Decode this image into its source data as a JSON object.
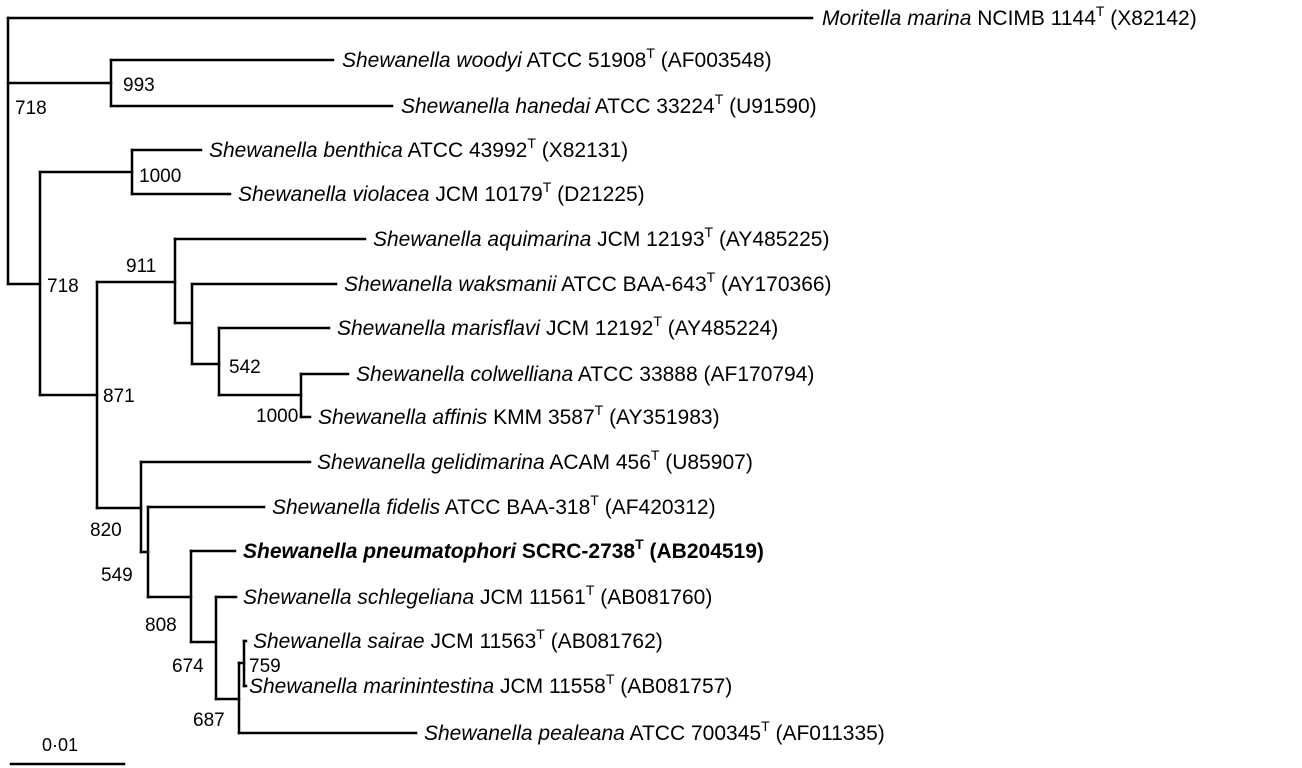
{
  "tree": {
    "leaves": [
      {
        "id": "moritella",
        "genus": "Moritella marina",
        "strain": "NCIMB 1144",
        "type_strain": true,
        "accession": "(X82142)",
        "bold": false
      },
      {
        "id": "woodyi",
        "genus": "Shewanella woodyi",
        "strain": "ATCC 51908",
        "type_strain": true,
        "accession": "(AF003548)",
        "bold": false
      },
      {
        "id": "hanedai",
        "genus": "Shewanella hanedai",
        "strain": "ATCC 33224",
        "type_strain": true,
        "accession": "(U91590)",
        "bold": false
      },
      {
        "id": "benthica",
        "genus": "Shewanella benthica",
        "strain": "ATCC 43992",
        "type_strain": true,
        "accession": "(X82131)",
        "bold": false
      },
      {
        "id": "violacea",
        "genus": "Shewanella violacea",
        "strain": "JCM 10179",
        "type_strain": true,
        "accession": "(D21225)",
        "bold": false
      },
      {
        "id": "aquimarina",
        "genus": "Shewanella aquimarina",
        "strain": "JCM 12193",
        "type_strain": true,
        "accession": "(AY485225)",
        "bold": false
      },
      {
        "id": "waksmanii",
        "genus": "Shewanella waksmanii",
        "strain": "ATCC BAA-643",
        "type_strain": true,
        "accession": "(AY170366)",
        "bold": false
      },
      {
        "id": "marisflavi",
        "genus": "Shewanella marisflavi",
        "strain": "JCM 12192",
        "type_strain": true,
        "accession": "(AY485224)",
        "bold": false
      },
      {
        "id": "colwelliana",
        "genus": "Shewanella colwelliana",
        "strain": "ATCC 33888",
        "type_strain": false,
        "accession": "(AF170794)",
        "bold": false
      },
      {
        "id": "affinis",
        "genus": "Shewanella affinis",
        "strain": "KMM 3587",
        "type_strain": true,
        "accession": "(AY351983)",
        "bold": false
      },
      {
        "id": "gelidimarina",
        "genus": "Shewanella gelidimarina",
        "strain": "ACAM 456",
        "type_strain": true,
        "accession": "(U85907)",
        "bold": false
      },
      {
        "id": "fidelis",
        "genus": "Shewanella fidelis",
        "strain": "ATCC BAA-318",
        "type_strain": true,
        "accession": "(AF420312)",
        "bold": false
      },
      {
        "id": "pneumatophori",
        "genus": "Shewanella pneumatophori",
        "strain": "SCRC-2738",
        "type_strain": true,
        "accession": "(AB204519)",
        "bold": true
      },
      {
        "id": "schlegeliana",
        "genus": "Shewanella schlegeliana",
        "strain": "JCM 11561",
        "type_strain": true,
        "accession": "(AB081760)",
        "bold": false
      },
      {
        "id": "sairae",
        "genus": "Shewanella sairae",
        "strain": "JCM 11563",
        "type_strain": true,
        "accession": "(AB081762)",
        "bold": false
      },
      {
        "id": "marinintestina",
        "genus": "Shewanella marinintestina",
        "strain": "JCM 11558",
        "type_strain": true,
        "accession": "(AB081757)",
        "bold": false
      },
      {
        "id": "pealeana",
        "genus": "Shewanella pealeana",
        "strain": "ATCC 700345",
        "type_strain": true,
        "accession": "(AF011335)",
        "bold": false
      }
    ],
    "type_mark": "T",
    "bootstrap": {
      "woodyi_hanedai": "993",
      "root_split": "718",
      "benthica_violacea": "1000",
      "big_clade": "718",
      "aquimarina_group": "911",
      "marisflavi_group": "542",
      "colwelliana_affinis": "1000",
      "two_clades": "871",
      "gelidimarina_group": "820",
      "fidelis_group": "549",
      "pneumatophori_group": "808",
      "schlegeliana_group": "674",
      "sairae_marinintestina": "759",
      "pealeana_group": "687"
    },
    "scale_bar": {
      "label": "0·01",
      "value": 0.01
    }
  }
}
